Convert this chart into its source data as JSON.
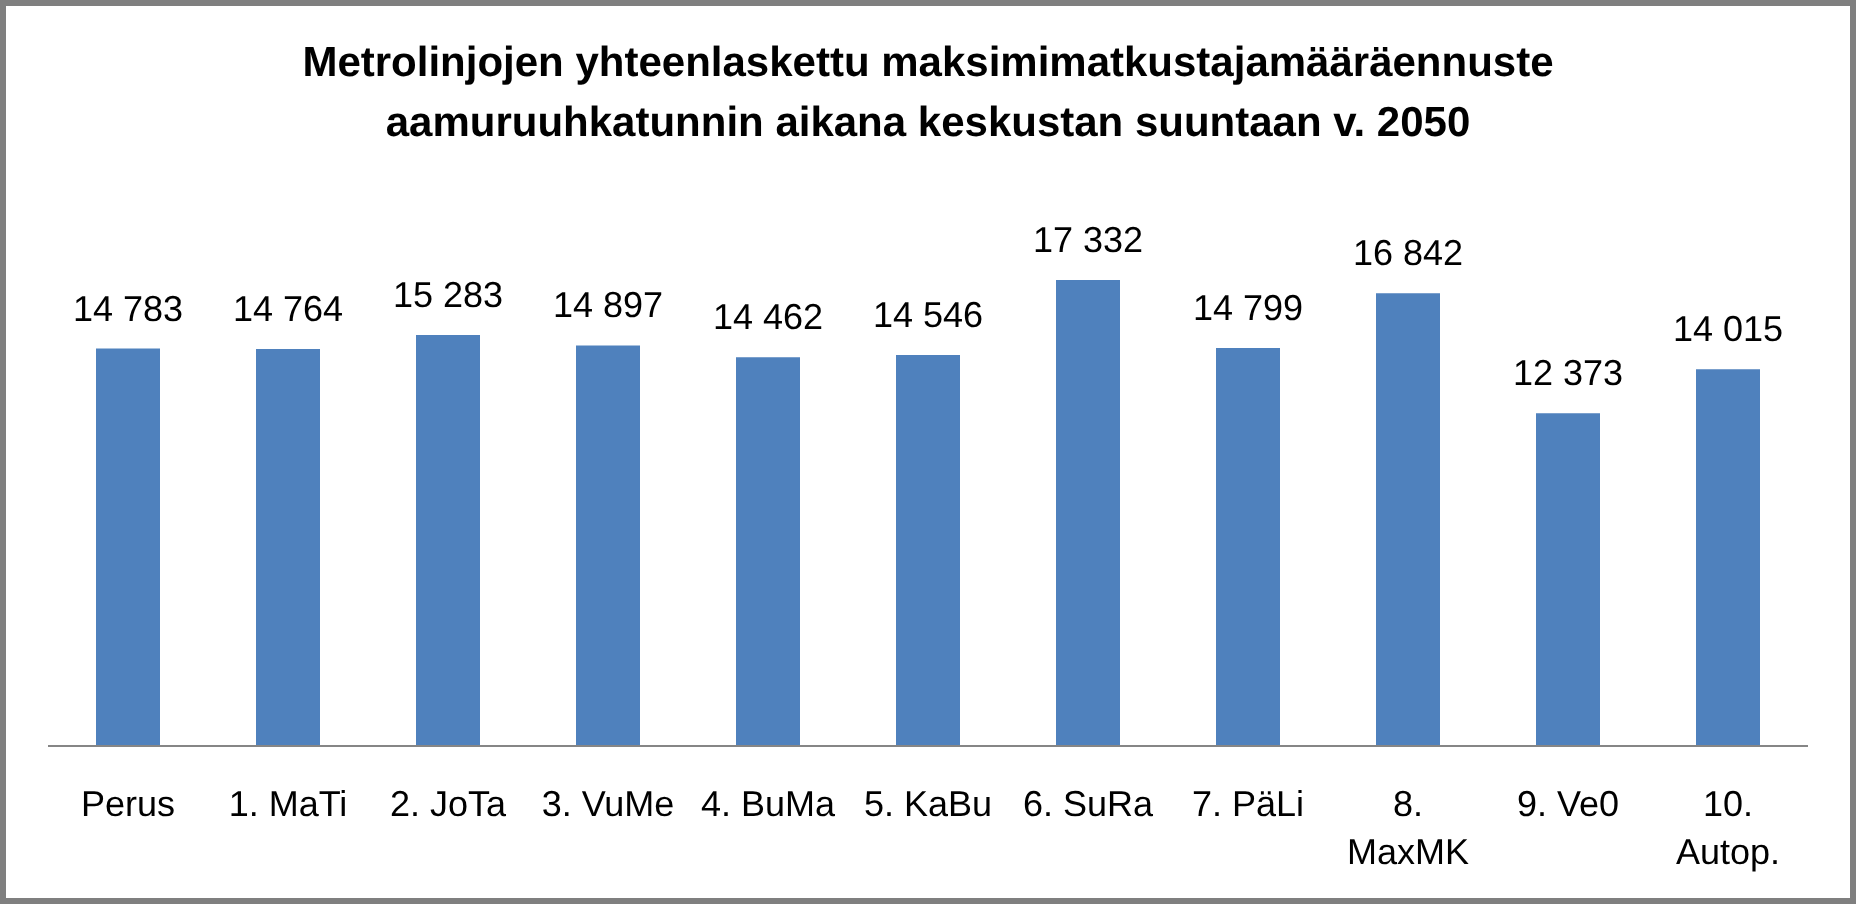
{
  "chart_data": {
    "type": "bar",
    "title": "Metrolinjojen yhteenlaskettu maksimimatkustajamääräennuste aamuruuhkatunnin aikana keskustan suuntaan v. 2050",
    "categories": [
      "Perus",
      "1. MaTi",
      "2. JoTa",
      "3. VuMe",
      "4. BuMa",
      "5. KaBu",
      "6. SuRa",
      "7. PäLi",
      "8. MaxMK",
      "9. Ve0",
      "10. Autop."
    ],
    "values": [
      14783,
      14764,
      15283,
      14897,
      14462,
      14546,
      17332,
      14799,
      16842,
      12373,
      14015
    ],
    "color": "#4f81bd",
    "value_labels": [
      "14 783",
      "14 764",
      "15 283",
      "14 897",
      "14 462",
      "14 546",
      "17 332",
      "14 799",
      "16 842",
      "12 373",
      "14 015"
    ]
  }
}
